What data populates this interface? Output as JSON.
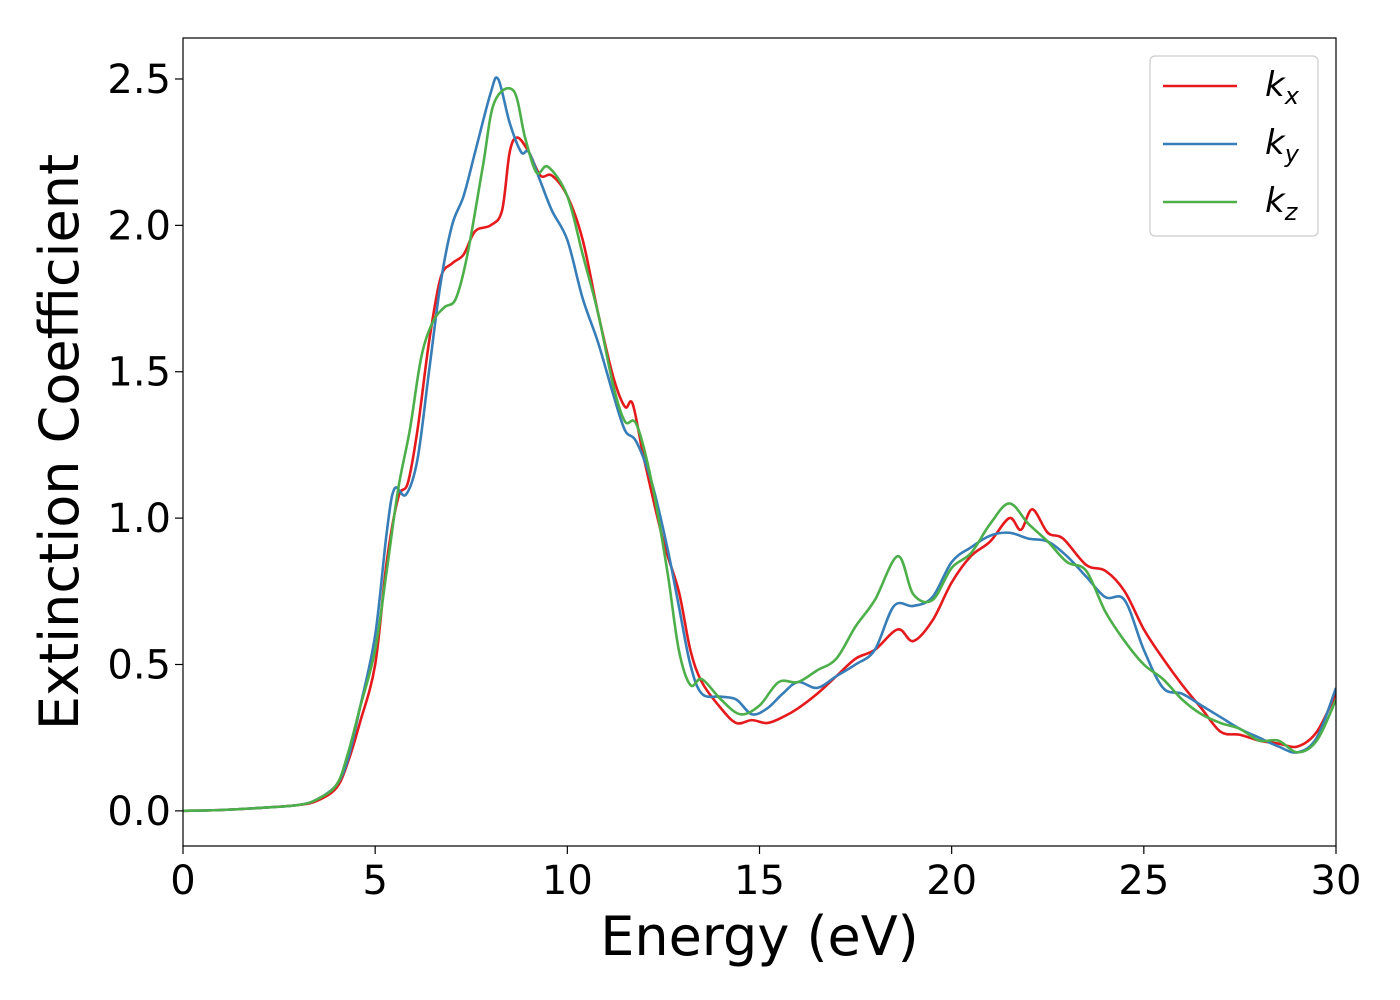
{
  "chart_data": {
    "type": "line",
    "title": "",
    "xlabel": "Energy (eV)",
    "ylabel": "Extinction Coefficient",
    "xlim": [
      0,
      30
    ],
    "ylim": [
      -0.12,
      2.64
    ],
    "xticks": [
      0,
      5,
      10,
      15,
      20,
      25,
      30
    ],
    "xtick_labels": [
      "0",
      "5",
      "10",
      "15",
      "20",
      "25",
      "30"
    ],
    "yticks": [
      0,
      0.5,
      1,
      1.5,
      2,
      2.5
    ],
    "ytick_labels": [
      "0.0",
      "0.5",
      "1.0",
      "1.5",
      "2.0",
      "2.5"
    ],
    "grid": false,
    "legend": {
      "position": "top-right",
      "entries": [
        {
          "base": "k",
          "sub": "x",
          "color": "#e41a1c"
        },
        {
          "base": "k",
          "sub": "y",
          "color": "#377eb8"
        },
        {
          "base": "k",
          "sub": "z",
          "color": "#4daf4a"
        }
      ]
    },
    "series": [
      {
        "name": "k_x",
        "color": "#e41a1c",
        "points": [
          [
            0,
            0
          ],
          [
            1,
            0.003
          ],
          [
            2,
            0.01
          ],
          [
            3,
            0.02
          ],
          [
            3.5,
            0.035
          ],
          [
            4,
            0.08
          ],
          [
            4.3,
            0.17
          ],
          [
            4.6,
            0.3
          ],
          [
            5,
            0.5
          ],
          [
            5.3,
            0.85
          ],
          [
            5.6,
            1.07
          ],
          [
            5.85,
            1.12
          ],
          [
            6.1,
            1.3
          ],
          [
            6.4,
            1.6
          ],
          [
            6.7,
            1.82
          ],
          [
            7,
            1.87
          ],
          [
            7.3,
            1.9
          ],
          [
            7.6,
            1.98
          ],
          [
            8,
            2.0
          ],
          [
            8.3,
            2.05
          ],
          [
            8.5,
            2.25
          ],
          [
            8.7,
            2.3
          ],
          [
            9,
            2.25
          ],
          [
            9.3,
            2.17
          ],
          [
            9.6,
            2.17
          ],
          [
            10,
            2.1
          ],
          [
            10.4,
            1.95
          ],
          [
            10.8,
            1.7
          ],
          [
            11.2,
            1.48
          ],
          [
            11.5,
            1.38
          ],
          [
            11.7,
            1.39
          ],
          [
            12,
            1.2
          ],
          [
            12.5,
            0.92
          ],
          [
            12.9,
            0.75
          ],
          [
            13.2,
            0.55
          ],
          [
            13.5,
            0.44
          ],
          [
            14,
            0.35
          ],
          [
            14.4,
            0.3
          ],
          [
            14.8,
            0.31
          ],
          [
            15.2,
            0.3
          ],
          [
            15.6,
            0.32
          ],
          [
            16,
            0.35
          ],
          [
            16.5,
            0.4
          ],
          [
            17,
            0.46
          ],
          [
            17.5,
            0.52
          ],
          [
            18,
            0.55
          ],
          [
            18.6,
            0.62
          ],
          [
            19,
            0.58
          ],
          [
            19.5,
            0.65
          ],
          [
            20,
            0.78
          ],
          [
            20.5,
            0.87
          ],
          [
            21,
            0.92
          ],
          [
            21.5,
            1.0
          ],
          [
            21.8,
            0.96
          ],
          [
            22.1,
            1.03
          ],
          [
            22.5,
            0.95
          ],
          [
            22.9,
            0.93
          ],
          [
            23.5,
            0.84
          ],
          [
            24,
            0.82
          ],
          [
            24.5,
            0.75
          ],
          [
            25,
            0.62
          ],
          [
            25.5,
            0.52
          ],
          [
            26,
            0.43
          ],
          [
            26.5,
            0.35
          ],
          [
            27,
            0.27
          ],
          [
            27.5,
            0.26
          ],
          [
            28,
            0.24
          ],
          [
            28.5,
            0.23
          ],
          [
            29,
            0.22
          ],
          [
            29.5,
            0.27
          ],
          [
            30,
            0.4
          ]
        ]
      },
      {
        "name": "k_y",
        "color": "#377eb8",
        "points": [
          [
            0,
            0
          ],
          [
            1,
            0.003
          ],
          [
            2,
            0.01
          ],
          [
            3,
            0.02
          ],
          [
            3.5,
            0.04
          ],
          [
            4,
            0.09
          ],
          [
            4.3,
            0.18
          ],
          [
            4.6,
            0.35
          ],
          [
            5,
            0.6
          ],
          [
            5.3,
            0.95
          ],
          [
            5.5,
            1.1
          ],
          [
            5.8,
            1.08
          ],
          [
            6.1,
            1.2
          ],
          [
            6.4,
            1.5
          ],
          [
            6.7,
            1.8
          ],
          [
            7,
            2.0
          ],
          [
            7.3,
            2.1
          ],
          [
            7.6,
            2.25
          ],
          [
            8,
            2.45
          ],
          [
            8.2,
            2.5
          ],
          [
            8.5,
            2.35
          ],
          [
            8.8,
            2.25
          ],
          [
            9,
            2.25
          ],
          [
            9.3,
            2.15
          ],
          [
            9.6,
            2.05
          ],
          [
            10,
            1.95
          ],
          [
            10.4,
            1.75
          ],
          [
            10.8,
            1.6
          ],
          [
            11.2,
            1.42
          ],
          [
            11.5,
            1.3
          ],
          [
            11.8,
            1.26
          ],
          [
            12.2,
            1.12
          ],
          [
            12.6,
            0.9
          ],
          [
            12.9,
            0.7
          ],
          [
            13.2,
            0.5
          ],
          [
            13.5,
            0.4
          ],
          [
            14,
            0.39
          ],
          [
            14.4,
            0.38
          ],
          [
            14.8,
            0.33
          ],
          [
            15.2,
            0.35
          ],
          [
            15.6,
            0.4
          ],
          [
            16,
            0.44
          ],
          [
            16.5,
            0.42
          ],
          [
            17,
            0.46
          ],
          [
            17.5,
            0.5
          ],
          [
            18,
            0.55
          ],
          [
            18.5,
            0.7
          ],
          [
            19,
            0.7
          ],
          [
            19.5,
            0.73
          ],
          [
            20,
            0.85
          ],
          [
            20.5,
            0.9
          ],
          [
            21,
            0.94
          ],
          [
            21.5,
            0.95
          ],
          [
            22,
            0.93
          ],
          [
            22.5,
            0.92
          ],
          [
            23,
            0.87
          ],
          [
            23.5,
            0.8
          ],
          [
            24,
            0.73
          ],
          [
            24.5,
            0.72
          ],
          [
            25,
            0.55
          ],
          [
            25.5,
            0.42
          ],
          [
            26,
            0.4
          ],
          [
            26.5,
            0.36
          ],
          [
            27,
            0.32
          ],
          [
            27.5,
            0.28
          ],
          [
            28,
            0.25
          ],
          [
            28.5,
            0.22
          ],
          [
            29,
            0.2
          ],
          [
            29.5,
            0.25
          ],
          [
            30,
            0.42
          ]
        ]
      },
      {
        "name": "k_z",
        "color": "#4daf4a",
        "points": [
          [
            0,
            0
          ],
          [
            1,
            0.003
          ],
          [
            2,
            0.01
          ],
          [
            3,
            0.02
          ],
          [
            3.5,
            0.04
          ],
          [
            4,
            0.09
          ],
          [
            4.3,
            0.2
          ],
          [
            4.6,
            0.35
          ],
          [
            5,
            0.55
          ],
          [
            5.3,
            0.82
          ],
          [
            5.6,
            1.1
          ],
          [
            5.9,
            1.3
          ],
          [
            6.2,
            1.55
          ],
          [
            6.5,
            1.67
          ],
          [
            6.8,
            1.72
          ],
          [
            7.1,
            1.75
          ],
          [
            7.4,
            1.9
          ],
          [
            7.8,
            2.2
          ],
          [
            8.1,
            2.42
          ],
          [
            8.6,
            2.46
          ],
          [
            8.9,
            2.3
          ],
          [
            9.2,
            2.18
          ],
          [
            9.5,
            2.2
          ],
          [
            10,
            2.1
          ],
          [
            10.4,
            1.9
          ],
          [
            10.8,
            1.7
          ],
          [
            11.2,
            1.45
          ],
          [
            11.5,
            1.33
          ],
          [
            11.8,
            1.32
          ],
          [
            12.2,
            1.12
          ],
          [
            12.6,
            0.82
          ],
          [
            12.9,
            0.55
          ],
          [
            13.2,
            0.43
          ],
          [
            13.5,
            0.45
          ],
          [
            14,
            0.38
          ],
          [
            14.5,
            0.33
          ],
          [
            15,
            0.36
          ],
          [
            15.5,
            0.44
          ],
          [
            16,
            0.44
          ],
          [
            16.5,
            0.48
          ],
          [
            17,
            0.52
          ],
          [
            17.5,
            0.63
          ],
          [
            18,
            0.72
          ],
          [
            18.6,
            0.87
          ],
          [
            19,
            0.74
          ],
          [
            19.5,
            0.72
          ],
          [
            20,
            0.83
          ],
          [
            20.5,
            0.88
          ],
          [
            21,
            0.98
          ],
          [
            21.5,
            1.05
          ],
          [
            22,
            0.98
          ],
          [
            22.5,
            0.92
          ],
          [
            23,
            0.85
          ],
          [
            23.5,
            0.82
          ],
          [
            24,
            0.68
          ],
          [
            24.5,
            0.58
          ],
          [
            25,
            0.5
          ],
          [
            25.5,
            0.45
          ],
          [
            26,
            0.38
          ],
          [
            26.5,
            0.33
          ],
          [
            27,
            0.3
          ],
          [
            27.5,
            0.28
          ],
          [
            28,
            0.24
          ],
          [
            28.5,
            0.24
          ],
          [
            29,
            0.2
          ],
          [
            29.5,
            0.24
          ],
          [
            30,
            0.38
          ]
        ]
      }
    ]
  }
}
